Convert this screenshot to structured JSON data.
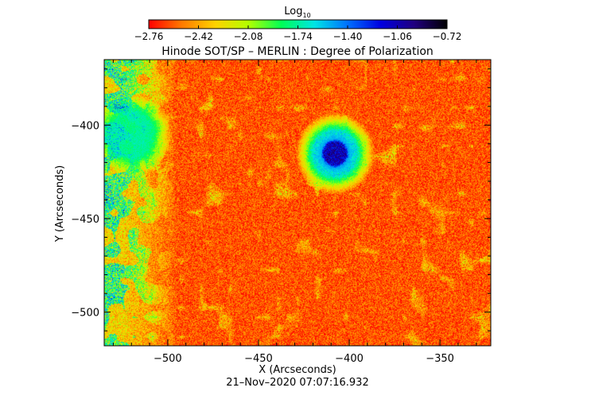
{
  "chart_data": {
    "type": "heatmap",
    "title": "Hinode SOT/SP – MERLIN : Degree of Polarization",
    "xlabel": "X (Arcseconds)",
    "ylabel": "Y (Arcseconds)",
    "xlim": [
      -535,
      -322
    ],
    "ylim": [
      -518,
      -365
    ],
    "xticks": [
      -500,
      -450,
      -400,
      -350
    ],
    "xtick_labels": [
      "−500",
      "−450",
      "−400",
      "−350"
    ],
    "yticks": [
      -400,
      -450,
      -500
    ],
    "ytick_labels": [
      "−400",
      "−450",
      "−500"
    ],
    "colorbar": {
      "label_base": "Log",
      "label_sub": "10",
      "tick_values": [
        -2.76,
        -2.42,
        -2.08,
        -1.74,
        -1.4,
        -1.06,
        -0.72
      ],
      "tick_labels": [
        "−2.76",
        "−2.42",
        "−2.08",
        "−1.74",
        "−1.40",
        "−1.06",
        "−0.72"
      ],
      "range": [
        -2.76,
        -0.72
      ],
      "colors": [
        "#ff0000",
        "#ff7a00",
        "#ffd200",
        "#b4ff00",
        "#00ff55",
        "#00e5e5",
        "#0070ff",
        "#0000e0",
        "#200080",
        "#000000"
      ]
    },
    "features": [
      {
        "name": "sunspot",
        "x": -408,
        "y": -415,
        "radius": 11,
        "log_value": -0.85
      },
      {
        "name": "penumbra-halo",
        "x": -408,
        "y": -415,
        "radius": 22,
        "log_value": -1.5
      },
      {
        "name": "plage-west",
        "x": -520,
        "y": -405,
        "radius": 22,
        "log_value": -1.7
      }
    ],
    "background_log_value": -2.6,
    "date": "21–Nov–2020 07:07:16.932"
  }
}
